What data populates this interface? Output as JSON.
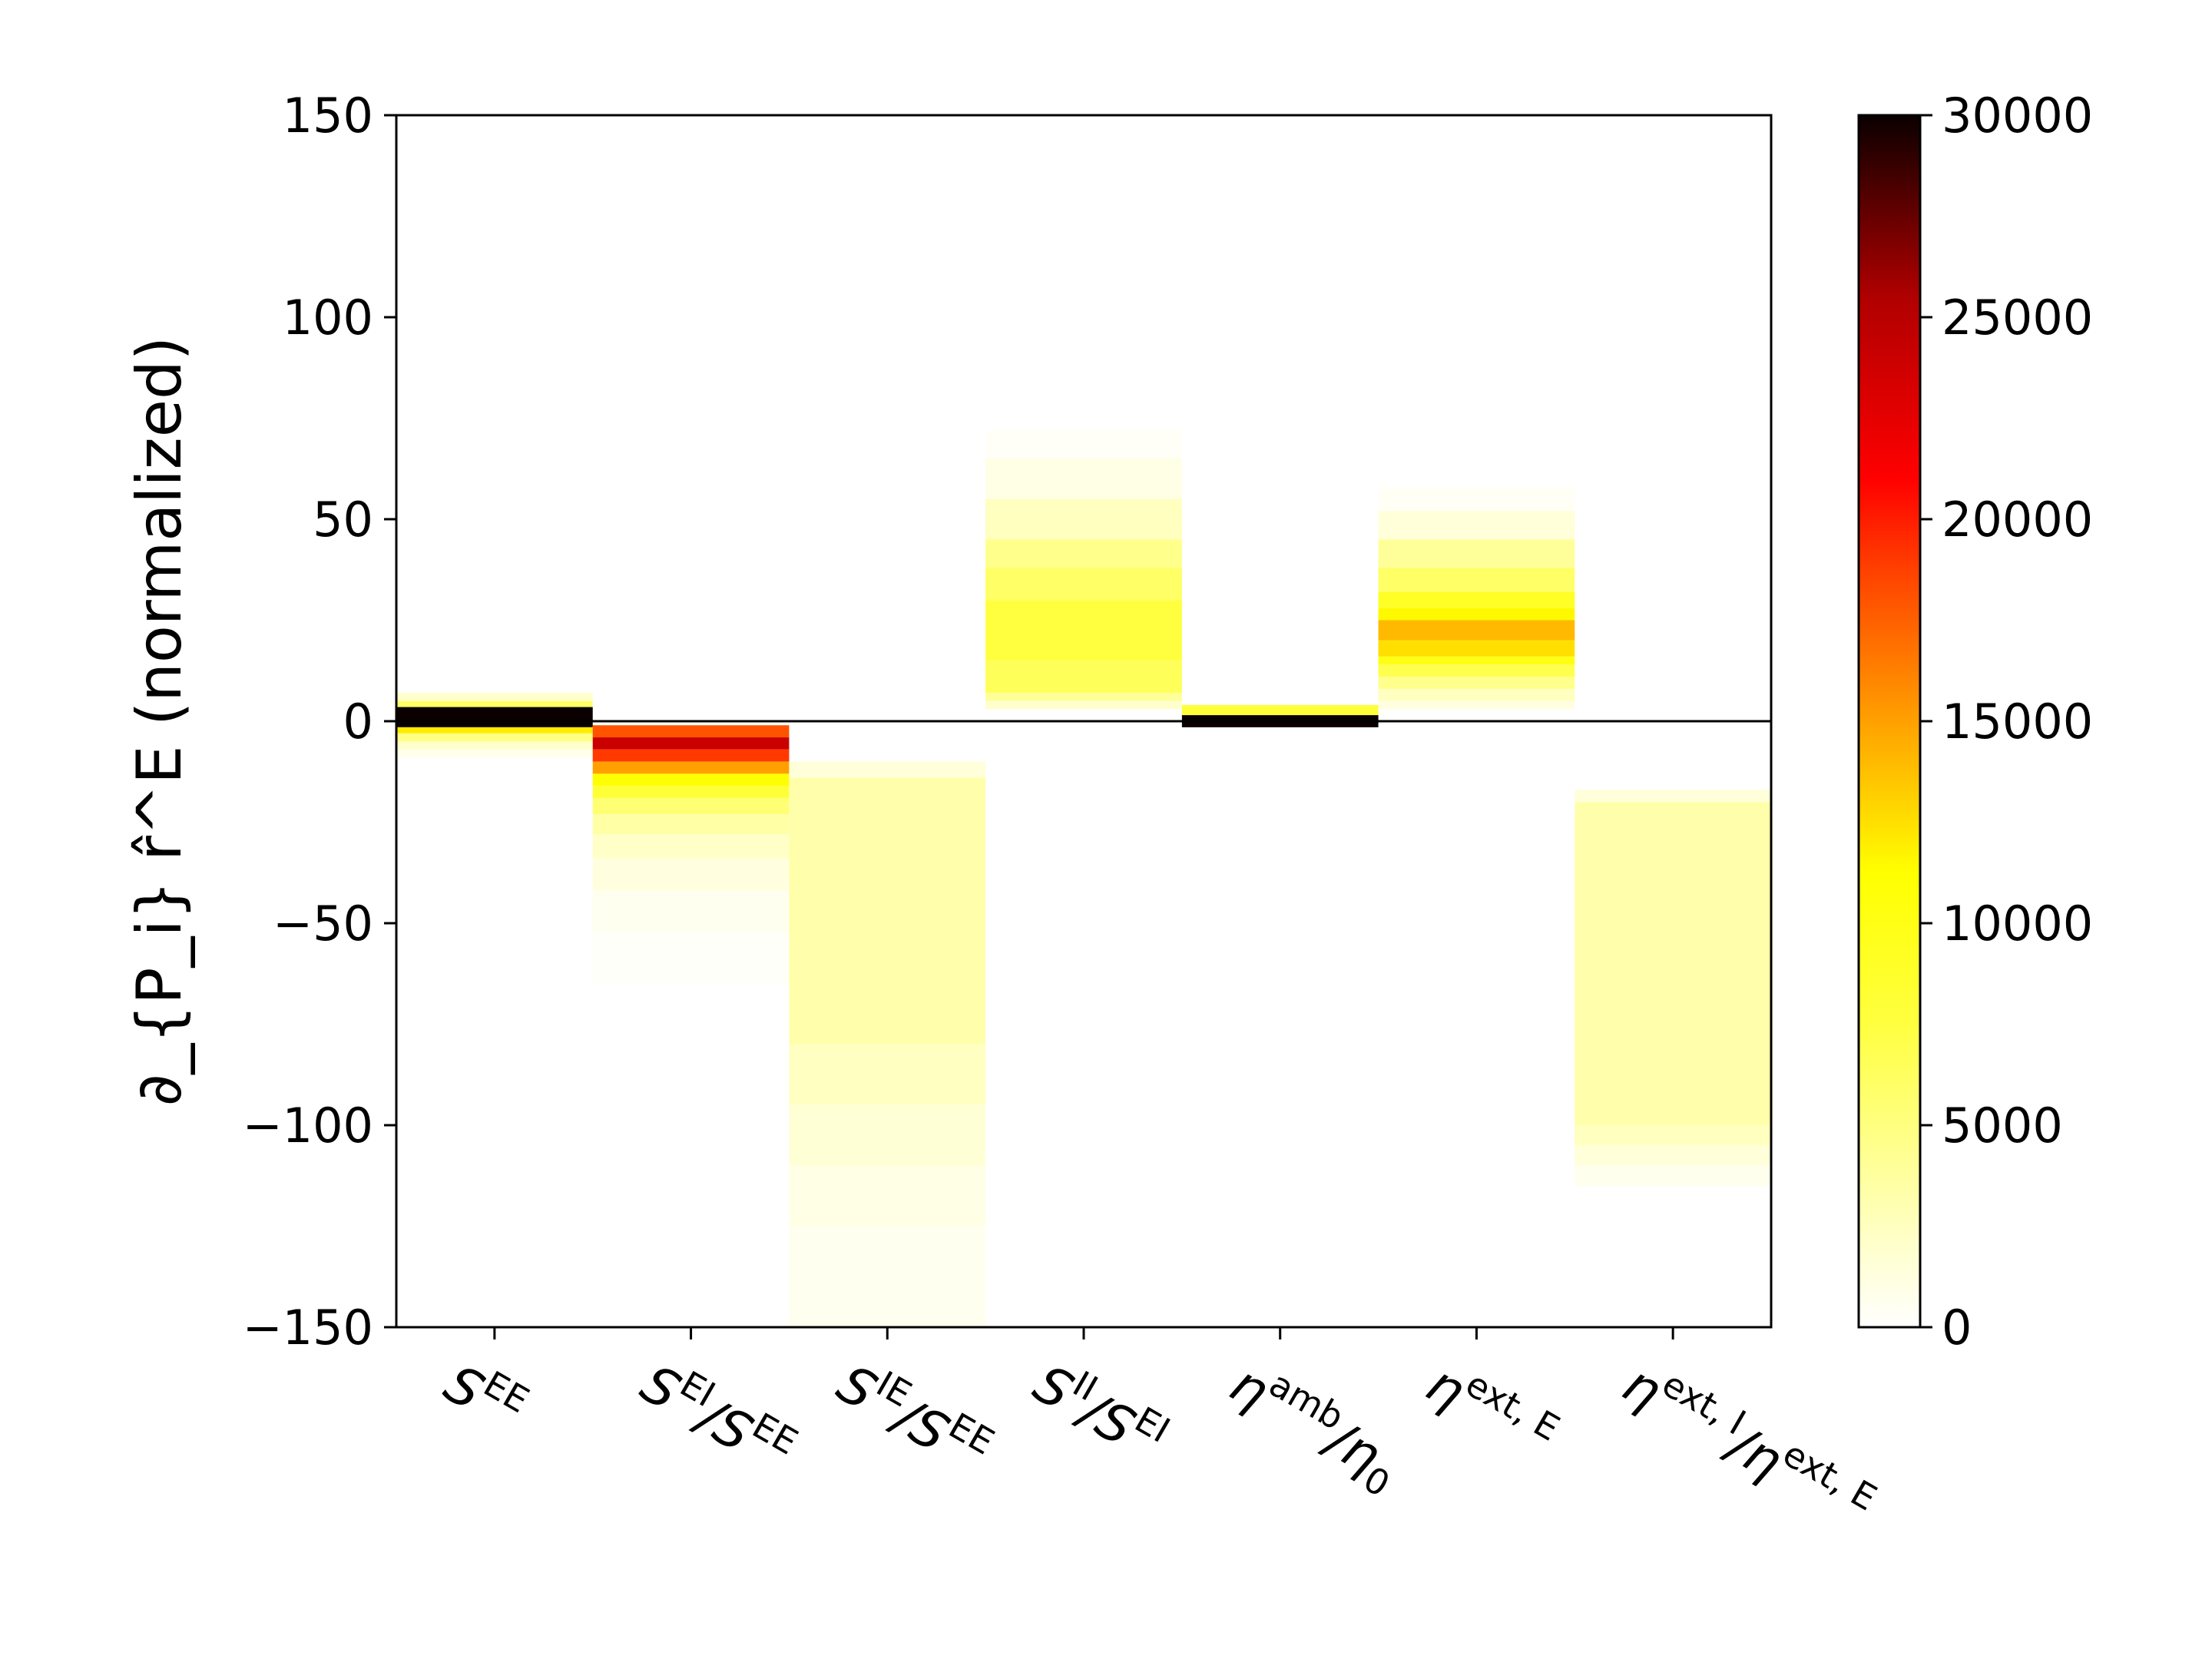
{
  "chart_data": {
    "type": "heatmap",
    "title": "",
    "xlabel": "",
    "ylabel": "∂_{P_i} r̂^E (normalized)",
    "ylim": [
      -150,
      150
    ],
    "y_ticks": [
      150,
      100,
      50,
      0,
      -50,
      -100,
      -150
    ],
    "y_tick_labels": [
      "150",
      "100",
      "50",
      "0",
      "−50",
      "−100",
      "−150"
    ],
    "grid": false,
    "zero_line": true,
    "colormap": "hot_r",
    "colorbar": {
      "range": [
        0,
        30000
      ],
      "ticks": [
        0,
        5000,
        10000,
        15000,
        20000,
        25000,
        30000
      ],
      "tick_labels": [
        "0",
        "5000",
        "10000",
        "15000",
        "20000",
        "25000",
        "30000"
      ],
      "placement": "right"
    },
    "categories": [
      {
        "main": "S",
        "sup": "EE",
        "tail": ""
      },
      {
        "main": "S",
        "sup": "EI",
        "tail": "/S",
        "sup2": "EE"
      },
      {
        "main": "S",
        "sup": "IE",
        "tail": "/S",
        "sup2": "EE"
      },
      {
        "main": "S",
        "sup": "II",
        "tail": "/S",
        "sup2": "EI"
      },
      {
        "main": "η",
        "sup": "amb",
        "tail": "/η",
        "sub2": "0"
      },
      {
        "main": "η",
        "sup": "ext, E",
        "tail": ""
      },
      {
        "main": "η",
        "sup": "ext, I",
        "tail": "/η",
        "sup2": "ext, E"
      }
    ],
    "columns": [
      {
        "category_index": 0,
        "bins": [
          {
            "y0": 5,
            "y1": 7,
            "value": 2000
          },
          {
            "y0": 3.5,
            "y1": 5,
            "value": 6000
          },
          {
            "y0": -1.5,
            "y1": 3.5,
            "value": 30000
          },
          {
            "y0": -3,
            "y1": -1.5,
            "value": 12000
          },
          {
            "y0": -5,
            "y1": -3,
            "value": 5000
          },
          {
            "y0": -7,
            "y1": -5,
            "value": 2000
          },
          {
            "y0": -9,
            "y1": -7,
            "value": 800
          }
        ]
      },
      {
        "category_index": 1,
        "bins": [
          {
            "y0": -4,
            "y1": -1,
            "value": 18000
          },
          {
            "y0": -7,
            "y1": -4,
            "value": 24000
          },
          {
            "y0": -10,
            "y1": -7,
            "value": 19000
          },
          {
            "y0": -13,
            "y1": -10,
            "value": 15000
          },
          {
            "y0": -16,
            "y1": -13,
            "value": 11000
          },
          {
            "y0": -19,
            "y1": -16,
            "value": 8000
          },
          {
            "y0": -23,
            "y1": -19,
            "value": 5500
          },
          {
            "y0": -28,
            "y1": -23,
            "value": 3500
          },
          {
            "y0": -34,
            "y1": -28,
            "value": 2200
          },
          {
            "y0": -42,
            "y1": -34,
            "value": 1200
          },
          {
            "y0": -52,
            "y1": -42,
            "value": 600
          },
          {
            "y0": -65,
            "y1": -52,
            "value": 250
          }
        ]
      },
      {
        "category_index": 2,
        "bins": [
          {
            "y0": -14,
            "y1": -10,
            "value": 1500
          },
          {
            "y0": -80,
            "y1": -14,
            "value": 3300
          },
          {
            "y0": -95,
            "y1": -80,
            "value": 2400
          },
          {
            "y0": -110,
            "y1": -95,
            "value": 1600
          },
          {
            "y0": -125,
            "y1": -110,
            "value": 1000
          },
          {
            "y0": -150,
            "y1": -125,
            "value": 600
          }
        ]
      },
      {
        "category_index": 3,
        "bins": [
          {
            "y0": 65,
            "y1": 72,
            "value": 300
          },
          {
            "y0": 55,
            "y1": 65,
            "value": 1000
          },
          {
            "y0": 45,
            "y1": 55,
            "value": 2500
          },
          {
            "y0": 38,
            "y1": 45,
            "value": 4500
          },
          {
            "y0": 30,
            "y1": 38,
            "value": 6000
          },
          {
            "y0": 15,
            "y1": 30,
            "value": 7500
          },
          {
            "y0": 7,
            "y1": 15,
            "value": 6500
          },
          {
            "y0": 5,
            "y1": 7,
            "value": 4000
          },
          {
            "y0": 3,
            "y1": 5,
            "value": 2000
          }
        ]
      },
      {
        "category_index": 4,
        "bins": [
          {
            "y0": 1.5,
            "y1": 4,
            "value": 8000
          },
          {
            "y0": -1.5,
            "y1": 1.5,
            "value": 30000
          }
        ]
      },
      {
        "category_index": 5,
        "bins": [
          {
            "y0": 52,
            "y1": 58,
            "value": 400
          },
          {
            "y0": 45,
            "y1": 52,
            "value": 1500
          },
          {
            "y0": 38,
            "y1": 45,
            "value": 4000
          },
          {
            "y0": 32,
            "y1": 38,
            "value": 6000
          },
          {
            "y0": 28,
            "y1": 32,
            "value": 9000
          },
          {
            "y0": 25,
            "y1": 28,
            "value": 11500
          },
          {
            "y0": 20,
            "y1": 25,
            "value": 14000
          },
          {
            "y0": 16,
            "y1": 20,
            "value": 12500
          },
          {
            "y0": 14,
            "y1": 16,
            "value": 10000
          },
          {
            "y0": 11,
            "y1": 14,
            "value": 7000
          },
          {
            "y0": 8,
            "y1": 11,
            "value": 4500
          },
          {
            "y0": 5,
            "y1": 8,
            "value": 2500
          },
          {
            "y0": 3,
            "y1": 5,
            "value": 1200
          }
        ]
      },
      {
        "category_index": 6,
        "bins": [
          {
            "y0": -20,
            "y1": -17,
            "value": 1500
          },
          {
            "y0": -100,
            "y1": -20,
            "value": 3300
          },
          {
            "y0": -105,
            "y1": -100,
            "value": 2500
          },
          {
            "y0": -110,
            "y1": -105,
            "value": 1500
          },
          {
            "y0": -115,
            "y1": -110,
            "value": 700
          }
        ]
      }
    ]
  }
}
